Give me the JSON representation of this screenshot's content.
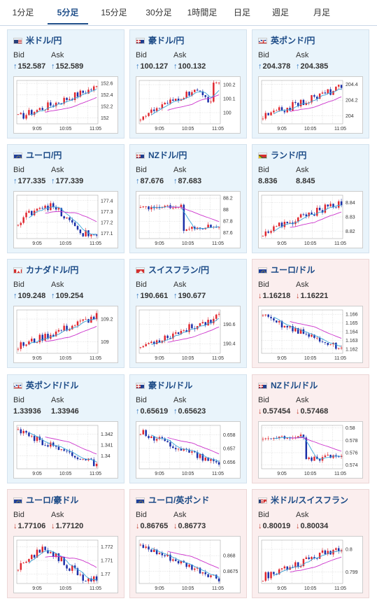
{
  "tabs": [
    {
      "label": "1分足",
      "active": false
    },
    {
      "label": "5分足",
      "active": true
    },
    {
      "label": "15分足",
      "active": false
    },
    {
      "label": "30分足",
      "active": false
    },
    {
      "label": "1時間足",
      "active": false
    },
    {
      "label": "日足",
      "active": false
    },
    {
      "label": "週足",
      "active": false
    },
    {
      "label": "月足",
      "active": false
    }
  ],
  "bid_label": "Bid",
  "ask_label": "Ask",
  "x_ticks": [
    "9:05",
    "10:05",
    "11:05"
  ],
  "colors": {
    "up_card": "#e9f4fb",
    "down_card": "#fbeeee",
    "title": "#1b4a86",
    "bull": "#e0262e",
    "bear": "#1b2fa8",
    "ma_short": "#3aa6d8",
    "ma_long": "#cc33cc"
  },
  "pairs": [
    {
      "name": "米ドル/円",
      "flag": "us",
      "trend": "up",
      "bid": "152.587",
      "ask": "152.589",
      "bid_arrow": "up",
      "ask_arrow": "up",
      "y_ticks": [
        "152.6",
        "152.4",
        "152.2",
        "152"
      ],
      "ylim": [
        151.9,
        152.65
      ],
      "shape": "rise"
    },
    {
      "name": "豪ドル/円",
      "flag": "au",
      "trend": "up",
      "bid": "100.127",
      "ask": "100.132",
      "bid_arrow": "up",
      "ask_arrow": "up",
      "y_ticks": [
        "100.2",
        "100.1",
        "100"
      ],
      "ylim": [
        99.92,
        100.23
      ],
      "shape": "rise_dip"
    },
    {
      "name": "英ポンド/円",
      "flag": "gb",
      "trend": "up",
      "bid": "204.378",
      "ask": "204.385",
      "bid_arrow": "up",
      "ask_arrow": "up",
      "y_ticks": [
        "204.4",
        "204.2",
        "204"
      ],
      "ylim": [
        203.9,
        204.45
      ],
      "shape": "rise"
    },
    {
      "name": "ユーロ/円",
      "flag": "eu",
      "trend": "up",
      "bid": "177.335",
      "ask": "177.339",
      "bid_arrow": "up",
      "ask_arrow": "up",
      "y_ticks": [
        "177.4",
        "177.3",
        "177.2",
        "177.1"
      ],
      "ylim": [
        177.05,
        177.45
      ],
      "shape": "wave"
    },
    {
      "name": "NZドル/円",
      "flag": "nz",
      "trend": "up",
      "bid": "87.676",
      "ask": "87.683",
      "bid_arrow": "up",
      "ask_arrow": "up",
      "y_ticks": [
        "88.2",
        "88",
        "87.8",
        "87.6"
      ],
      "ylim": [
        87.5,
        88.25
      ],
      "shape": "drop"
    },
    {
      "name": "ランド/円",
      "flag": "za",
      "trend": "up",
      "bid": "8.836",
      "ask": "8.845",
      "bid_arrow": "",
      "ask_arrow": "",
      "y_ticks": [
        "8.84",
        "8.83",
        "8.82"
      ],
      "ylim": [
        8.815,
        8.845
      ],
      "shape": "rise"
    },
    {
      "name": "カナダドル/円",
      "flag": "ca",
      "trend": "up",
      "bid": "109.248",
      "ask": "109.254",
      "bid_arrow": "up",
      "ask_arrow": "up",
      "y_ticks": [
        "109.2",
        "109"
      ],
      "ylim": [
        108.9,
        109.28
      ],
      "shape": "rise"
    },
    {
      "name": "スイスフラン/円",
      "flag": "ch",
      "trend": "up",
      "bid": "190.661",
      "ask": "190.677",
      "bid_arrow": "up",
      "ask_arrow": "up",
      "y_ticks": [
        "190.6",
        "190.4"
      ],
      "ylim": [
        190.3,
        190.75
      ],
      "shape": "rise"
    },
    {
      "name": "ユーロ/ドル",
      "flag": "eu",
      "trend": "down",
      "bid": "1.16218",
      "ask": "1.16221",
      "bid_arrow": "down",
      "ask_arrow": "down",
      "y_ticks": [
        "1.166",
        "1.165",
        "1.164",
        "1.163",
        "1.162"
      ],
      "ylim": [
        1.1615,
        1.1665
      ],
      "shape": "fall"
    },
    {
      "name": "英ポンド/ドル",
      "flag": "gb",
      "trend": "up",
      "bid": "1.33936",
      "ask": "1.33946",
      "bid_arrow": "",
      "ask_arrow": "",
      "y_ticks": [
        "1.342",
        "1.341",
        "1.34"
      ],
      "ylim": [
        1.3388,
        1.3428
      ],
      "shape": "fall"
    },
    {
      "name": "豪ドル/ドル",
      "flag": "au",
      "trend": "up",
      "bid": "0.65619",
      "ask": "0.65623",
      "bid_arrow": "up",
      "ask_arrow": "up",
      "y_ticks": [
        "0.658",
        "0.657",
        "0.656"
      ],
      "ylim": [
        0.6555,
        0.6587
      ],
      "shape": "fall"
    },
    {
      "name": "NZドル/ドル",
      "flag": "nz",
      "trend": "down",
      "bid": "0.57454",
      "ask": "0.57468",
      "bid_arrow": "down",
      "ask_arrow": "down",
      "y_ticks": [
        "0.58",
        "0.578",
        "0.576",
        "0.574"
      ],
      "ylim": [
        0.5734,
        0.5804
      ],
      "shape": "drop"
    },
    {
      "name": "ユーロ/豪ドル",
      "flag": "eu",
      "trend": "down",
      "bid": "1.77106",
      "ask": "1.77120",
      "bid_arrow": "down",
      "ask_arrow": "down",
      "y_ticks": [
        "1.772",
        "1.771",
        "1.77"
      ],
      "ylim": [
        1.7693,
        1.7725
      ],
      "shape": "wave"
    },
    {
      "name": "ユーロ/英ポンド",
      "flag": "eu",
      "trend": "down",
      "bid": "0.86765",
      "ask": "0.86773",
      "bid_arrow": "down",
      "ask_arrow": "down",
      "y_ticks": [
        "0.868",
        "0.8675"
      ],
      "ylim": [
        0.8671,
        0.8685
      ],
      "shape": "fall"
    },
    {
      "name": "米ドル/スイスフラン",
      "flag": "chus",
      "trend": "down",
      "bid": "0.80019",
      "ask": "0.80034",
      "bid_arrow": "down",
      "ask_arrow": "down",
      "y_ticks": [
        "0.8",
        "0.799"
      ],
      "ylim": [
        0.7985,
        0.8004
      ],
      "shape": "rise"
    }
  ]
}
